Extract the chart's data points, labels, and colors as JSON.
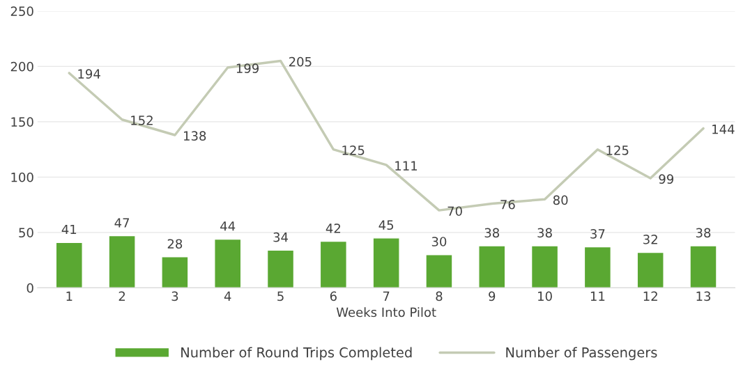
{
  "chart_data": {
    "type": "bar",
    "xlabel": "Weeks Into Pilot",
    "categories": [
      "1",
      "2",
      "3",
      "4",
      "5",
      "6",
      "7",
      "8",
      "9",
      "10",
      "11",
      "12",
      "13"
    ],
    "series": [
      {
        "name": "Number of Round Trips Completed",
        "color": "#5aa832",
        "values": [
          41,
          47,
          28,
          44,
          34,
          42,
          45,
          30,
          38,
          38,
          37,
          32,
          38
        ]
      },
      {
        "name": "Number of Passengers",
        "type": "line",
        "color": "#c4cbb4",
        "values": [
          194,
          152,
          138,
          199,
          205,
          125,
          111,
          70,
          76,
          80,
          125,
          99,
          144
        ]
      }
    ],
    "ylim": [
      0,
      250
    ],
    "yticks": [
      0,
      50,
      100,
      150,
      200,
      250
    ],
    "grid": "y",
    "legend": "bottom",
    "data_labels": true
  }
}
